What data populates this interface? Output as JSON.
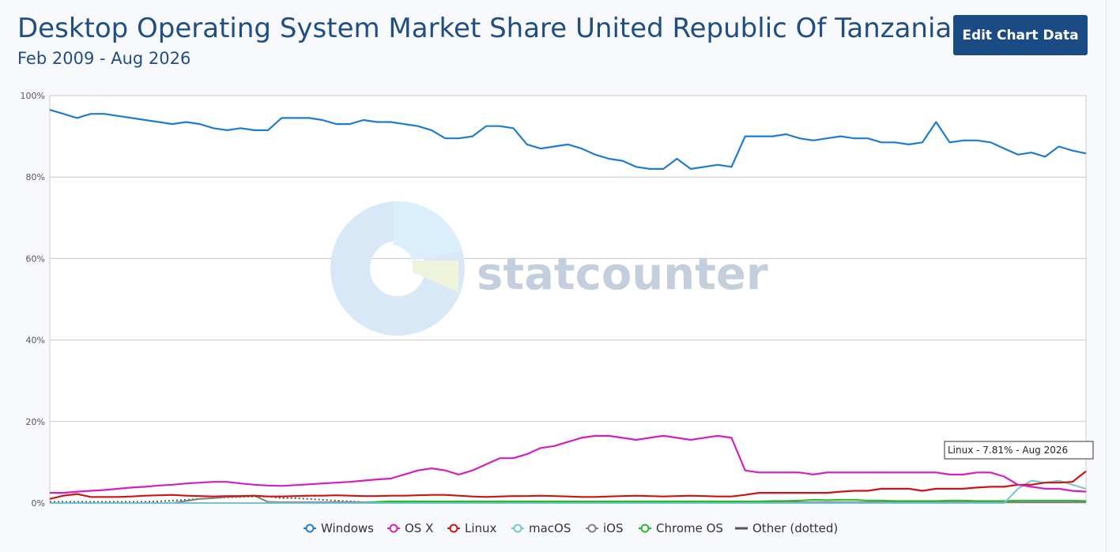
{
  "header": {
    "title": "Desktop Operating System Market Share United Republic Of Tanzania",
    "subtitle": "Feb 2009 - Aug 2026",
    "edit_button_label": "Edit Chart Data"
  },
  "watermark": {
    "text": "statcounter"
  },
  "tooltip": {
    "text": "Linux - 7.81% - Aug 2026"
  },
  "colors": {
    "Windows": "#1f7bd1",
    "OS X": "#d11fc0",
    "Linux": "#cc1414",
    "macOS": "#6fc6cf",
    "iOS": "#808080",
    "Chrome OS": "#28b928",
    "Other": "#555555"
  },
  "chart_data": {
    "type": "line",
    "x_start": "Feb 2009",
    "x_end": "Aug 2026",
    "ylim": [
      0,
      100
    ],
    "yticks": [
      "0%",
      "20%",
      "40%",
      "60%",
      "80%",
      "100%"
    ],
    "grid": true,
    "legend_position": "bottom",
    "series": [
      {
        "name": "Windows",
        "values": [
          96.5,
          95.5,
          94.5,
          95.5,
          95.5,
          95.0,
          94.5,
          94.0,
          93.5,
          93.0,
          93.5,
          93.0,
          92.0,
          91.5,
          92.0,
          91.5,
          91.5,
          94.5,
          94.5,
          94.5,
          94.0,
          93.0,
          93.0,
          94.0,
          93.5,
          93.5,
          93.0,
          92.5,
          91.5,
          89.5,
          89.5,
          90.0,
          92.5,
          92.5,
          92.0,
          88.0,
          87.0,
          87.5,
          88.0,
          87.0,
          85.5,
          84.5,
          84.0,
          82.5,
          82.0,
          82.0,
          84.5,
          82.0,
          82.5,
          83.0,
          82.5,
          90.0,
          90.0,
          90.0,
          90.5,
          89.5,
          89.0,
          89.5,
          90.0,
          89.5,
          89.5,
          88.5,
          88.5,
          88.0,
          88.5,
          93.5,
          88.5,
          89.0,
          89.0,
          88.5,
          87.0,
          85.5,
          86.0,
          85.0,
          87.5,
          86.5,
          85.8
        ]
      },
      {
        "name": "OS X",
        "values": [
          2.5,
          2.5,
          2.8,
          3.0,
          3.2,
          3.5,
          3.8,
          4.0,
          4.3,
          4.5,
          4.8,
          5.0,
          5.2,
          5.2,
          4.8,
          4.5,
          4.3,
          4.2,
          4.4,
          4.6,
          4.8,
          5.0,
          5.2,
          5.5,
          5.8,
          6.0,
          7.0,
          8.0,
          8.5,
          8.0,
          7.0,
          8.0,
          9.5,
          11.0,
          11.0,
          12.0,
          13.5,
          14.0,
          15.0,
          16.0,
          16.5,
          16.5,
          16.0,
          15.5,
          16.0,
          16.5,
          16.0,
          15.5,
          16.0,
          16.5,
          16.0,
          8.0,
          7.5,
          7.5,
          7.5,
          7.5,
          7.0,
          7.5,
          7.5,
          7.5,
          7.5,
          7.5,
          7.5,
          7.5,
          7.5,
          7.5,
          7.0,
          7.0,
          7.5,
          7.5,
          6.5,
          4.5,
          4.0,
          3.5,
          3.5,
          3.0,
          2.8
        ]
      },
      {
        "name": "Linux",
        "values": [
          1.0,
          1.8,
          2.2,
          1.5,
          1.5,
          1.5,
          1.6,
          1.8,
          1.9,
          2.0,
          1.8,
          1.7,
          1.6,
          1.7,
          1.7,
          1.8,
          1.6,
          1.6,
          1.7,
          1.8,
          1.8,
          1.9,
          1.8,
          1.7,
          1.7,
          1.8,
          1.8,
          1.9,
          2.0,
          2.0,
          1.8,
          1.6,
          1.5,
          1.6,
          1.7,
          1.7,
          1.8,
          1.7,
          1.6,
          1.5,
          1.5,
          1.6,
          1.7,
          1.8,
          1.7,
          1.6,
          1.7,
          1.8,
          1.7,
          1.6,
          1.6,
          2.0,
          2.5,
          2.5,
          2.5,
          2.5,
          2.5,
          2.5,
          2.8,
          3.0,
          3.0,
          3.5,
          3.5,
          3.5,
          3.0,
          3.5,
          3.5,
          3.5,
          3.8,
          4.0,
          4.0,
          4.5,
          4.5,
          5.0,
          5.0,
          5.2,
          7.81
        ]
      },
      {
        "name": "macOS",
        "values": [
          0,
          0,
          0,
          0,
          0,
          0,
          0,
          0,
          0,
          0,
          0,
          0,
          0,
          0,
          0,
          0,
          0,
          0,
          0,
          0,
          0,
          0,
          0,
          0,
          0,
          0,
          0,
          0,
          0,
          0,
          0,
          0,
          0,
          0,
          0,
          0,
          0,
          0,
          0,
          0,
          0,
          0,
          0,
          0,
          0,
          0,
          0,
          0,
          0,
          0,
          0,
          0,
          0,
          0,
          0,
          0,
          0,
          0,
          0,
          0,
          0,
          0,
          0,
          0,
          0,
          0,
          0,
          0,
          0,
          0,
          0,
          3.5,
          5.5,
          5.0,
          5.5,
          4.5,
          3.5
        ]
      },
      {
        "name": "iOS",
        "values": [
          0,
          0,
          0,
          0,
          0,
          0,
          0,
          0,
          0,
          0,
          0.5,
          1.0,
          1.2,
          1.5,
          1.6,
          1.8,
          0.3,
          0.2,
          0.2,
          0.2,
          0.2,
          0.2,
          0.2,
          0.2,
          0.2,
          0.2,
          0.2,
          0.2,
          0.2,
          0.2,
          0.2,
          0.2,
          0.2,
          0.2,
          0.2,
          0.2,
          0.2,
          0.2,
          0.2,
          0.2,
          0.2,
          0.2,
          0.2,
          0.2,
          0.2,
          0.2,
          0.2,
          0.2,
          0.2,
          0.2,
          0.2,
          0.2,
          0.2,
          0.2,
          0.2,
          0.2,
          0.2,
          0.2,
          0.2,
          0.2,
          0.2,
          0.2,
          0.2,
          0.2,
          0.2,
          0.2,
          0.2,
          0.2,
          0.2,
          0.2,
          0.2,
          0.2,
          0.2,
          0.2,
          0.2,
          0.2,
          0.2
        ]
      },
      {
        "name": "Chrome OS",
        "values": [
          0,
          0,
          0,
          0,
          0,
          0,
          0,
          0,
          0,
          0,
          0,
          0,
          0,
          0,
          0,
          0,
          0,
          0,
          0,
          0,
          0,
          0,
          0,
          0,
          0.3,
          0.4,
          0.4,
          0.4,
          0.4,
          0.4,
          0.4,
          0.4,
          0.4,
          0.4,
          0.4,
          0.4,
          0.4,
          0.4,
          0.4,
          0.4,
          0.4,
          0.4,
          0.4,
          0.4,
          0.4,
          0.4,
          0.4,
          0.4,
          0.4,
          0.4,
          0.4,
          0.4,
          0.4,
          0.5,
          0.5,
          0.6,
          0.8,
          0.7,
          0.8,
          0.8,
          0.6,
          0.6,
          0.5,
          0.5,
          0.5,
          0.5,
          0.6,
          0.6,
          0.5,
          0.5,
          0.5,
          0.6,
          0.6,
          0.6,
          0.6,
          0.6,
          0.5
        ]
      },
      {
        "name": "Other (dotted)",
        "values": [
          0.3,
          0.3,
          0.3,
          0.3,
          0.3,
          0.3,
          0.3,
          0.3,
          0.4,
          0.6,
          0.8,
          1.0,
          1.2,
          1.4,
          1.5,
          1.6,
          1.6,
          1.2,
          1.2,
          1.0,
          0.8,
          0.6,
          0.4,
          0.2,
          0.2,
          0.2,
          0.2,
          0.2,
          0.2,
          0.2,
          0.2,
          0.2,
          0.2,
          0.2,
          0.2,
          0.2,
          0.2,
          0.2,
          0.2,
          0.2,
          0.2,
          0.2,
          0.2,
          0.2,
          0.2,
          0.2,
          0.2,
          0.2,
          0.2,
          0.2,
          0.2,
          0.2,
          0.2,
          0.2,
          0.2,
          0.2,
          0.2,
          0.2,
          0.2,
          0.2,
          0.2,
          0.2,
          0.2,
          0.2,
          0.2,
          0.2,
          0.2,
          0.2,
          0.2,
          0.2,
          0.2,
          0.2,
          0.2,
          0.2,
          0.2,
          0.2,
          0.2
        ]
      }
    ],
    "legend": [
      "Windows",
      "OS X",
      "Linux",
      "macOS",
      "iOS",
      "Chrome OS",
      "Other (dotted)"
    ]
  }
}
